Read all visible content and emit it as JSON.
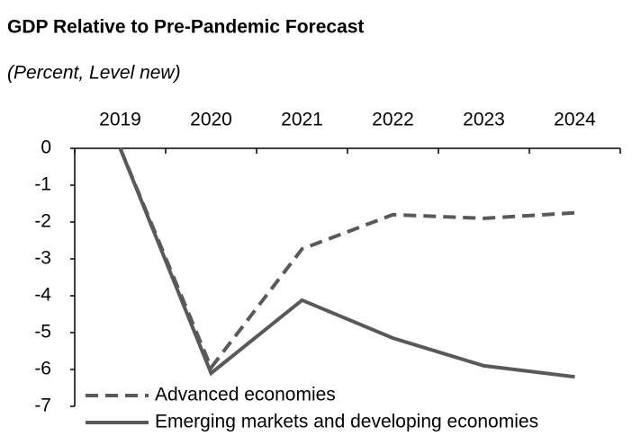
{
  "chart_data": {
    "type": "line",
    "title": "GDP Relative to Pre-Pandemic Forecast",
    "subtitle": "(Percent, Level new)",
    "categories": [
      "2019",
      "2020",
      "2021",
      "2022",
      "2023",
      "2024"
    ],
    "series": [
      {
        "name": "Advanced economies",
        "color": "#595959",
        "dashed": true,
        "values": [
          0,
          -5.95,
          -2.73,
          -1.8,
          -1.9,
          -1.75
        ]
      },
      {
        "name": "Emerging markets and developing economies",
        "color": "#595959",
        "dashed": false,
        "values": [
          0,
          -6.1,
          -4.12,
          -5.15,
          -5.9,
          -6.2
        ]
      }
    ],
    "ylim": [
      -7,
      0
    ],
    "yticks": [
      0,
      -1,
      -2,
      -3,
      -4,
      -5,
      -6,
      -7
    ],
    "legend": "lower left"
  }
}
